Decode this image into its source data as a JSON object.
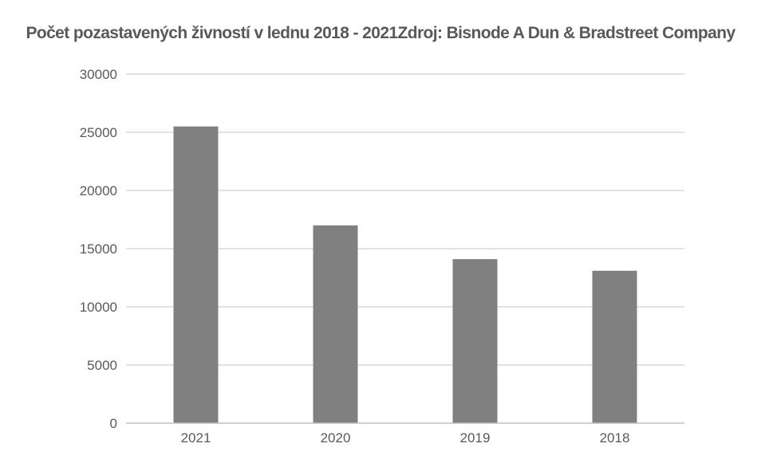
{
  "chart_data": {
    "type": "bar",
    "title": "Počet pozastavených živností v lednu 2018 - 2021Zdroj: Bisnode A Dun & Bradstreet Company",
    "categories": [
      "2021",
      "2020",
      "2019",
      "2018"
    ],
    "values": [
      25500,
      17000,
      14100,
      13100
    ],
    "xlabel": "",
    "ylabel": "",
    "ylim": [
      0,
      30000
    ],
    "yticks": [
      0,
      5000,
      10000,
      15000,
      20000,
      25000,
      30000
    ],
    "grid": true,
    "legend": "none",
    "colors": {
      "bar": "#808080",
      "grid": "#d9d9d9",
      "axis": "#bfbfbf",
      "text": "#595959"
    }
  }
}
